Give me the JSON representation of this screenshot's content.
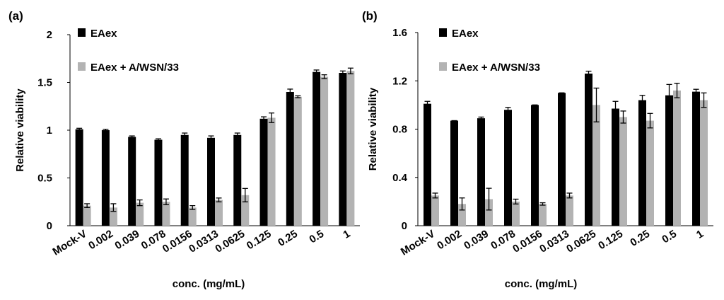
{
  "chart_data": [
    {
      "type": "bar",
      "panel_label": "(a)",
      "categories": [
        "Mock-V",
        "0.002",
        "0.039",
        "0.078",
        "0.0156",
        "0.0313",
        "0.0625",
        "0.125",
        "0.25",
        "0.5",
        "1"
      ],
      "series": [
        {
          "name": "EAex",
          "color": "#000000",
          "values": [
            1.01,
            1.0,
            0.93,
            0.9,
            0.95,
            0.92,
            0.95,
            1.12,
            1.4,
            1.61,
            1.6
          ],
          "errors": [
            0.01,
            0.01,
            0.01,
            0.01,
            0.02,
            0.02,
            0.02,
            0.02,
            0.03,
            0.02,
            0.02
          ]
        },
        {
          "name": "EAex + A/WSN/33",
          "color": "#b3b3b3",
          "values": [
            0.21,
            0.19,
            0.24,
            0.25,
            0.19,
            0.27,
            0.32,
            1.13,
            1.35,
            1.56,
            1.62
          ],
          "errors": [
            0.02,
            0.04,
            0.03,
            0.03,
            0.02,
            0.02,
            0.07,
            0.05,
            0.01,
            0.02,
            0.03
          ]
        }
      ],
      "yticks": [
        "0",
        "0.5",
        "1",
        "1.5",
        "2"
      ],
      "ylim": [
        0,
        2
      ],
      "xlabel": "conc. (mg/mL)",
      "ylabel": "Relative viability",
      "legend_position": "top-left"
    },
    {
      "type": "bar",
      "panel_label": "(b)",
      "categories": [
        "Mock-V",
        "0.002",
        "0.039",
        "0.078",
        "0.0156",
        "0.0313",
        "0.0625",
        "0.125",
        "0.25",
        "0.5",
        "1"
      ],
      "series": [
        {
          "name": "EAex",
          "color": "#000000",
          "values": [
            1.01,
            0.87,
            0.89,
            0.96,
            1.0,
            1.1,
            1.26,
            0.97,
            1.04,
            1.08,
            1.11
          ],
          "errors": [
            0.02,
            0.0,
            0.01,
            0.02,
            0.0,
            0.0,
            0.02,
            0.06,
            0.04,
            0.09,
            0.02
          ]
        },
        {
          "name": "EAex + A/WSN/33",
          "color": "#b3b3b3",
          "values": [
            0.25,
            0.18,
            0.22,
            0.2,
            0.18,
            0.25,
            1.0,
            0.9,
            0.87,
            1.12,
            1.04
          ],
          "errors": [
            0.02,
            0.05,
            0.09,
            0.02,
            0.01,
            0.02,
            0.14,
            0.05,
            0.06,
            0.06,
            0.06
          ]
        }
      ],
      "yticks": [
        "0",
        "0.4",
        "0.8",
        "1.2",
        "1.6"
      ],
      "ylim": [
        0,
        1.6
      ],
      "xlabel": "conc. (mg/mL)",
      "ylabel": "Relative viability",
      "legend_position": "top-left"
    }
  ]
}
